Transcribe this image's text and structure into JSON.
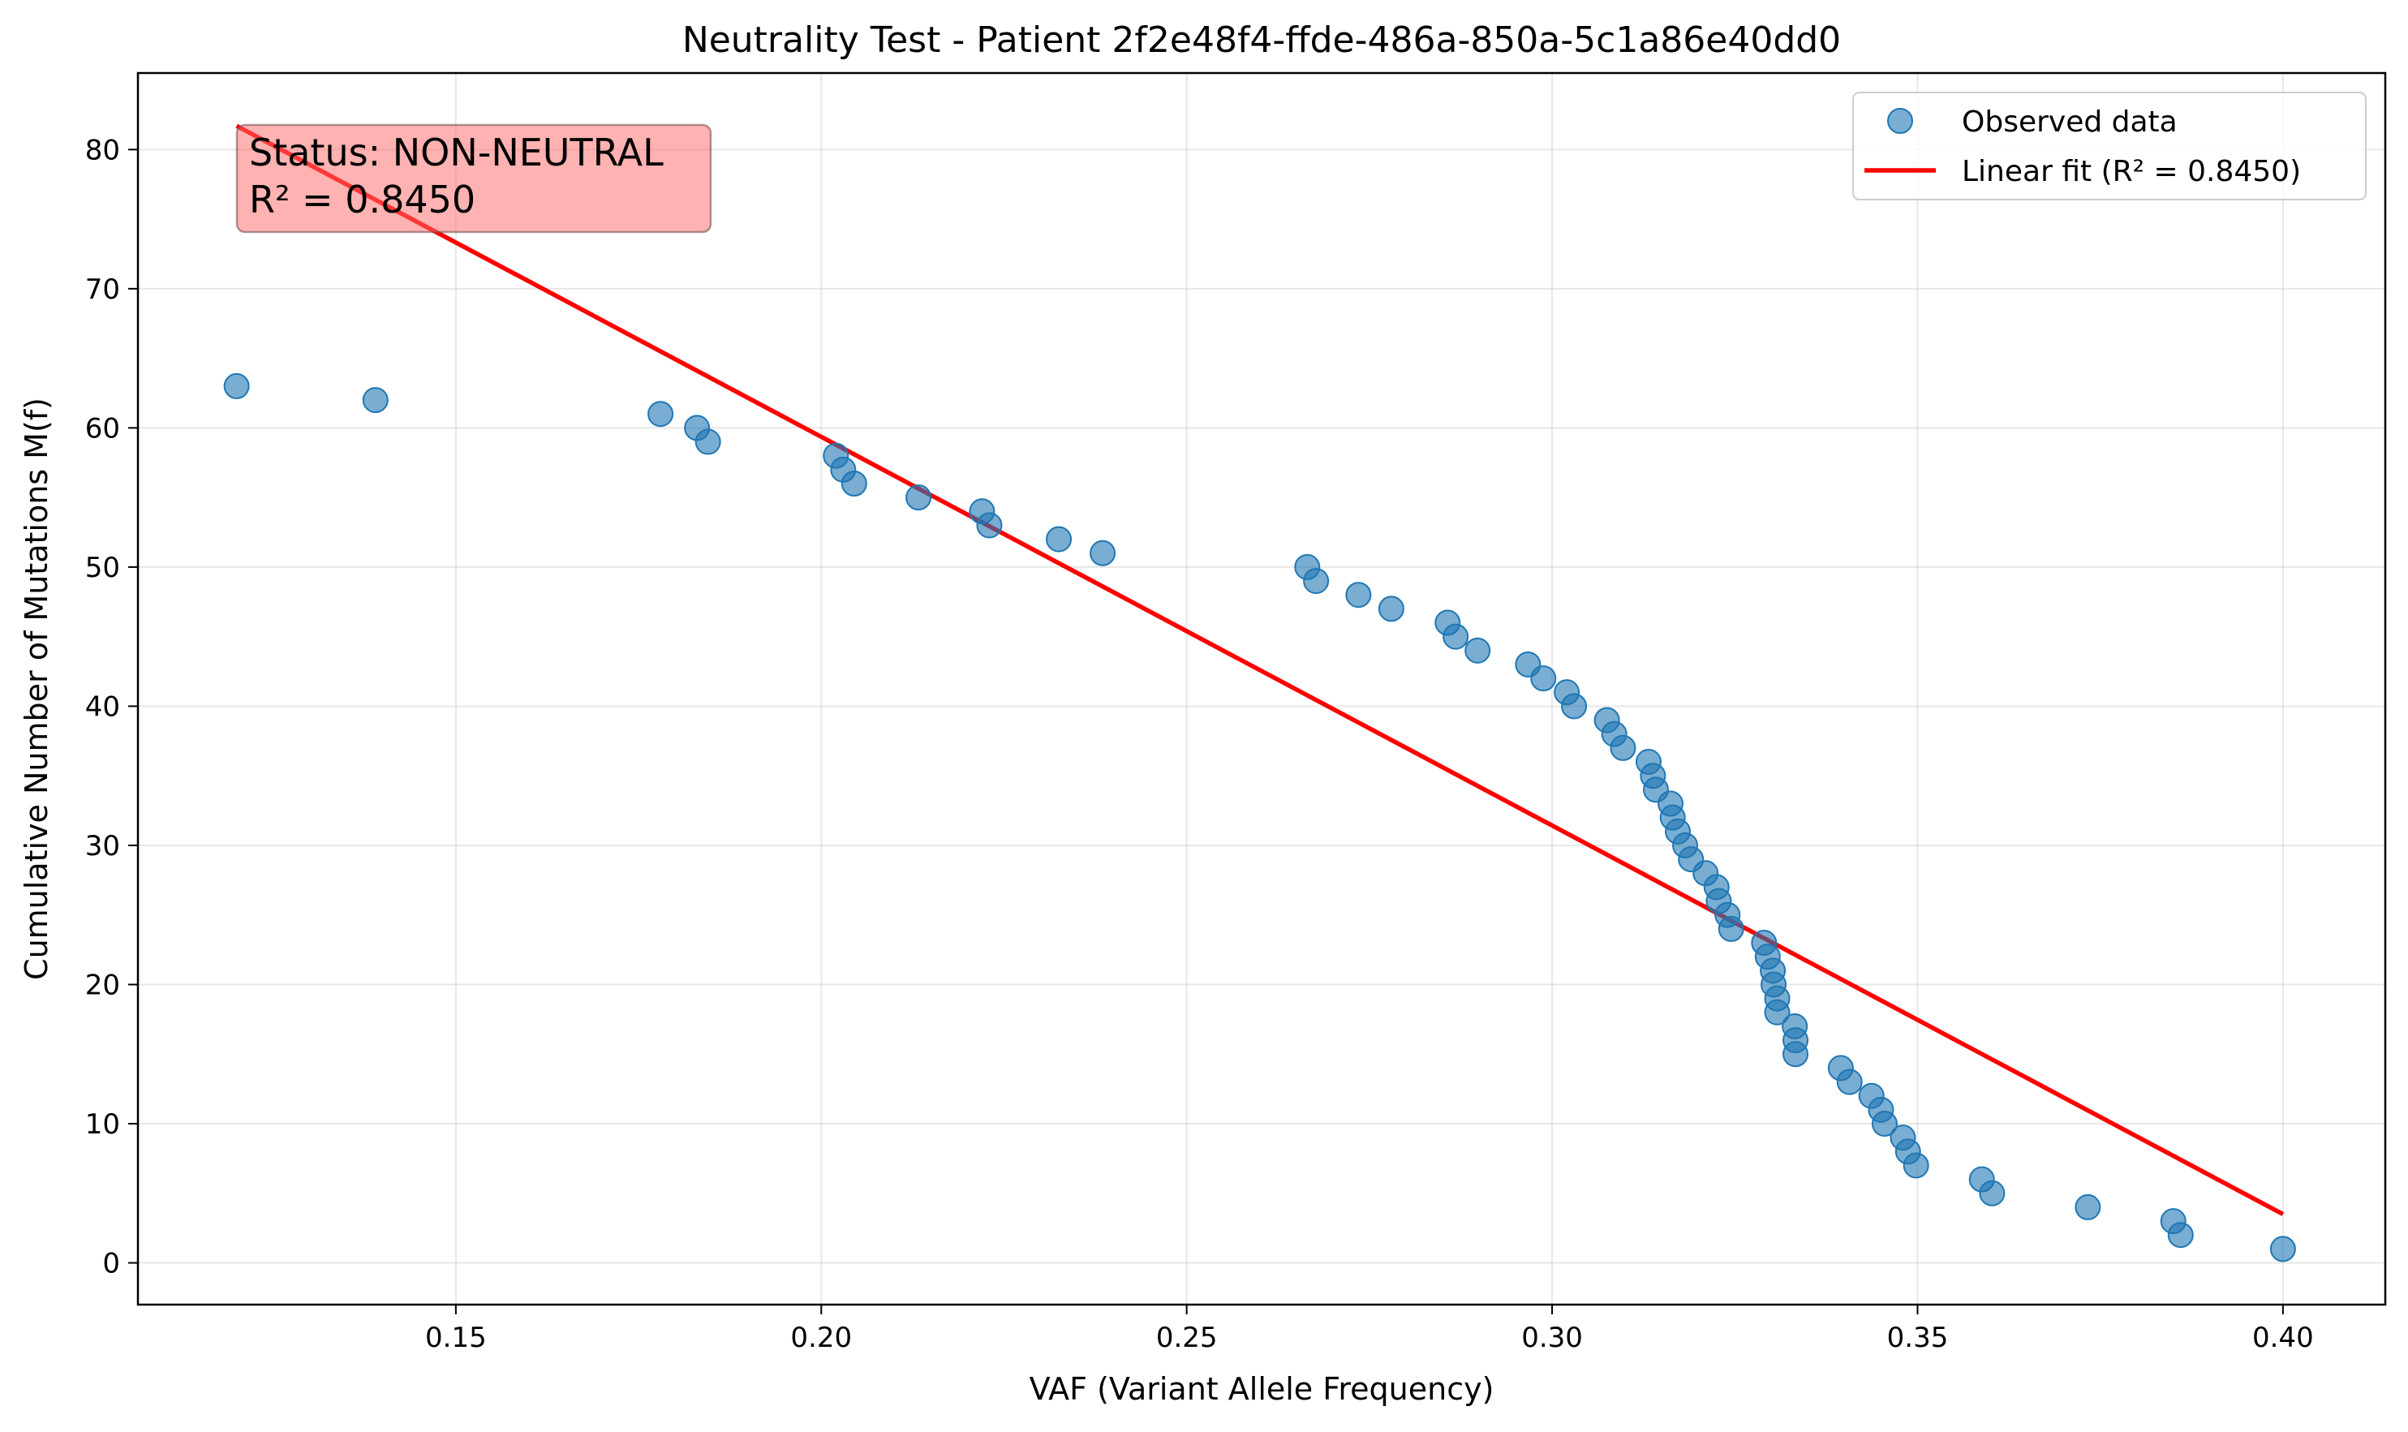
{
  "chart_data": {
    "type": "scatter",
    "title": "Neutrality Test - Patient 2f2e48f4-ffde-486a-850a-5c1a86e40dd0",
    "xlabel": "VAF (Variant Allele Frequency)",
    "ylabel": "Cumulative Number of Mutations M(f)",
    "xlim": [
      0.1065,
      0.414
    ],
    "ylim": [
      -3.0,
      85.5
    ],
    "xticks": [
      0.15,
      0.2,
      0.25,
      0.3,
      0.35,
      0.4
    ],
    "xtick_labels": [
      "0.15",
      "0.20",
      "0.25",
      "0.30",
      "0.35",
      "0.40"
    ],
    "yticks": [
      0,
      10,
      20,
      30,
      40,
      50,
      60,
      70,
      80
    ],
    "ytick_labels": [
      "0",
      "10",
      "20",
      "30",
      "40",
      "50",
      "60",
      "70",
      "80"
    ],
    "grid": true,
    "legend": {
      "placement": "top-right",
      "entries": [
        "Observed data",
        "Linear fit (R² = 0.8450)"
      ]
    },
    "series": [
      {
        "name": "Observed data",
        "kind": "scatter",
        "color": "#1f77b4",
        "points": [
          [
            0.12,
            63
          ],
          [
            0.139,
            62
          ],
          [
            0.178,
            61
          ],
          [
            0.183,
            60
          ],
          [
            0.1845,
            59
          ],
          [
            0.202,
            58
          ],
          [
            0.203,
            57
          ],
          [
            0.2045,
            56
          ],
          [
            0.2133,
            55
          ],
          [
            0.222,
            54
          ],
          [
            0.223,
            53
          ],
          [
            0.2325,
            52
          ],
          [
            0.2385,
            51
          ],
          [
            0.2665,
            50
          ],
          [
            0.2677,
            49
          ],
          [
            0.2735,
            48
          ],
          [
            0.278,
            47
          ],
          [
            0.2857,
            46
          ],
          [
            0.2868,
            45
          ],
          [
            0.2898,
            44
          ],
          [
            0.2967,
            43
          ],
          [
            0.2988,
            42
          ],
          [
            0.302,
            41
          ],
          [
            0.303,
            40
          ],
          [
            0.3075,
            39
          ],
          [
            0.3085,
            38
          ],
          [
            0.3097,
            37
          ],
          [
            0.3132,
            36
          ],
          [
            0.3138,
            35
          ],
          [
            0.3142,
            34
          ],
          [
            0.3162,
            33
          ],
          [
            0.3165,
            32
          ],
          [
            0.3172,
            31
          ],
          [
            0.3182,
            30
          ],
          [
            0.319,
            29
          ],
          [
            0.321,
            28
          ],
          [
            0.3225,
            27
          ],
          [
            0.3228,
            26
          ],
          [
            0.324,
            25
          ],
          [
            0.3245,
            24
          ],
          [
            0.329,
            23
          ],
          [
            0.3295,
            22
          ],
          [
            0.3302,
            21
          ],
          [
            0.3303,
            20
          ],
          [
            0.3308,
            19
          ],
          [
            0.3308,
            18
          ],
          [
            0.3332,
            17
          ],
          [
            0.3333,
            16
          ],
          [
            0.3333,
            15
          ],
          [
            0.3395,
            14
          ],
          [
            0.3407,
            13
          ],
          [
            0.3437,
            12
          ],
          [
            0.345,
            11
          ],
          [
            0.3455,
            10
          ],
          [
            0.348,
            9
          ],
          [
            0.3487,
            8
          ],
          [
            0.3498,
            7
          ],
          [
            0.3588,
            6
          ],
          [
            0.3602,
            5
          ],
          [
            0.3733,
            4
          ],
          [
            0.385,
            3
          ],
          [
            0.386,
            2
          ],
          [
            0.4,
            1
          ]
        ]
      },
      {
        "name": "Linear fit (R² = 0.8450)",
        "kind": "line",
        "color": "#ff0000",
        "points": [
          [
            0.12,
            81.7
          ],
          [
            0.4,
            3.5
          ]
        ]
      }
    ],
    "annotations": [
      {
        "text_lines": [
          "Status: NON-NEUTRAL",
          "R² = 0.8450"
        ],
        "box_color": "#ffb3b3"
      }
    ]
  }
}
